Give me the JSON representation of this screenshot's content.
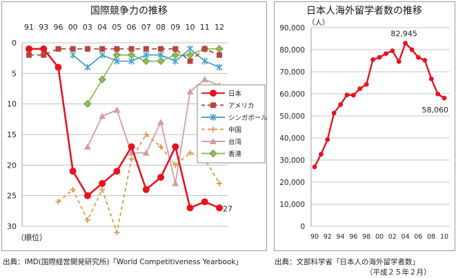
{
  "chart_data": [
    {
      "type": "line",
      "title": "国際競争力の推移",
      "xlabel": "",
      "ylabel": "（順位）",
      "x": [
        "91",
        "93",
        "96",
        "00",
        "03",
        "04",
        "05",
        "06",
        "07",
        "08",
        "09",
        "10",
        "11",
        "12"
      ],
      "ylim": [
        30,
        0
      ],
      "y_ticks": [
        0,
        5,
        10,
        15,
        20,
        25,
        30
      ],
      "y_inverted": true,
      "grid": true,
      "legend_placement": "right",
      "series": [
        {
          "name": "日本",
          "color": "#e8121f",
          "marker": "circle",
          "dash": "solid",
          "values": [
            1,
            1,
            4,
            21,
            25,
            23,
            21,
            17,
            24,
            22,
            17,
            27,
            26,
            27
          ]
        },
        {
          "name": "アメリカ",
          "color": "#b8453a",
          "marker": "square",
          "dash": "dashed",
          "values": [
            2,
            2,
            1,
            1,
            1,
            1,
            1,
            1,
            1,
            1,
            1,
            3,
            1,
            2
          ]
        },
        {
          "name": "シンガポール",
          "color": "#49a3c3",
          "marker": "star",
          "dash": "solid",
          "values": [
            null,
            null,
            null,
            2,
            4,
            2,
            3,
            3,
            2,
            2,
            3,
            1,
            3,
            4
          ]
        },
        {
          "name": "中国",
          "color": "#d79a4e",
          "marker": "plus",
          "dash": "dashed",
          "values": [
            null,
            null,
            26,
            24,
            29,
            24,
            31,
            19,
            15,
            17,
            20,
            18,
            19,
            23
          ]
        },
        {
          "name": "台湾",
          "color": "#d39ba4",
          "marker": "triangle",
          "dash": "solid",
          "values": [
            null,
            null,
            null,
            null,
            17,
            12,
            11,
            18,
            18,
            13,
            23,
            8,
            6,
            7
          ]
        },
        {
          "name": "香港",
          "color": "#8fbe57",
          "marker": "diamond",
          "dash": "solid",
          "values": [
            null,
            null,
            null,
            null,
            10,
            6,
            2,
            2,
            3,
            3,
            2,
            2,
            1,
            1
          ]
        }
      ],
      "annotations": [
        {
          "series": "日本",
          "x": "12",
          "text": "27"
        }
      ],
      "source": "出典：IMD(国際経営開発研究所)「World Competitiveness Yearbook」"
    },
    {
      "type": "line",
      "title": "日本人海外留学者数の推移",
      "ylabel": "（人）",
      "xlabel": "",
      "x": [
        90,
        91,
        92,
        93,
        94,
        95,
        96,
        97,
        98,
        99,
        100,
        101,
        102,
        103,
        104,
        105,
        106,
        107,
        108,
        109,
        110
      ],
      "x_tick_labels": [
        "90",
        "92",
        "94",
        "96",
        "98",
        "00",
        "02",
        "04",
        "06",
        "08",
        "10"
      ],
      "ylim": [
        0,
        90000
      ],
      "y_ticks": [
        "0",
        "10,000",
        "20,000",
        "30,000",
        "40,000",
        "50,000",
        "60,000",
        "70,000",
        "80,000",
        "90,000"
      ],
      "grid": true,
      "series": [
        {
          "name": "日本人海外留学者数",
          "color": "#e8121f",
          "marker": "circle",
          "values": [
            26900,
            32600,
            39300,
            51300,
            55100,
            59500,
            59400,
            62300,
            64300,
            75500,
            76500,
            78200,
            79500,
            74600,
            82945,
            80000,
            76500,
            75200,
            66800,
            59900,
            58060
          ]
        }
      ],
      "annotations": [
        {
          "x": 104,
          "text": "82,945"
        },
        {
          "x": 110,
          "text": "58,060"
        }
      ],
      "source": "出典：文部科学省「日本人の海外留学者数」",
      "source_note": "（平成２５年２月）"
    }
  ]
}
